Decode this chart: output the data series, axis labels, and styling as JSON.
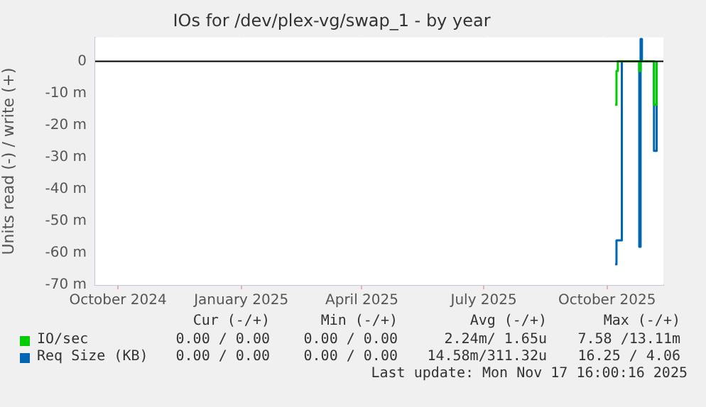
{
  "chart_data": {
    "type": "step",
    "title": "IOs for /dev/plex-vg/swap_1 - by year",
    "ylabel": "Units read (-) / write (+)",
    "xlim": [
      "2024-09-14",
      "2025-11-12"
    ],
    "xticks": [
      {
        "value": "2024-10-01",
        "label": "October 2024"
      },
      {
        "value": "2025-01-01",
        "label": "January 2025"
      },
      {
        "value": "2025-04-01",
        "label": "April 2025"
      },
      {
        "value": "2025-07-01",
        "label": "July 2025"
      },
      {
        "value": "2025-10-01",
        "label": "October 2025"
      }
    ],
    "ylim": [
      -70,
      7.5
    ],
    "yticks": [
      0,
      {
        "value": -10,
        "label": "-10 m"
      },
      {
        "value": -20,
        "label": "-20 m"
      },
      {
        "value": -30,
        "label": "-30 m"
      },
      {
        "value": -40,
        "label": "-40 m"
      },
      {
        "value": -50,
        "label": "-50 m"
      },
      {
        "value": -60,
        "label": "-60 m"
      },
      {
        "value": -70,
        "label": "-70 m"
      }
    ],
    "grid": true,
    "legend": "bottom",
    "ref_lines": [
      {
        "axis": "y",
        "value": 0,
        "color": "#000000"
      }
    ],
    "series": [
      {
        "name": "IO/sec",
        "color": "#00cc00",
        "x": [
          "2025-10-07",
          "2025-10-08",
          "2025-10-09",
          "2025-10-24",
          "2025-10-25",
          "2025-10-26",
          "2025-11-04",
          "2025-11-05",
          "2025-11-07"
        ],
        "values": [
          -13.6,
          -3,
          0,
          0,
          -3,
          0,
          0,
          -13.6,
          0
        ]
      },
      {
        "name": "Req Size (KB)",
        "color": "#0066b3",
        "x": [
          "2025-10-07",
          "2025-10-08",
          "2025-10-12",
          "2025-10-24",
          "2025-10-25",
          "2025-10-26",
          "2025-10-27",
          "2025-11-04",
          "2025-11-05",
          "2025-11-07"
        ],
        "values": [
          -63.5,
          -56,
          0,
          0,
          -58,
          7,
          0,
          0,
          -28,
          0
        ]
      }
    ],
    "annotations": [
      "Cur (-/+)",
      "Min (-/+)",
      "Avg (-/+)",
      "Max (-/+)",
      "0.00 / 0.00",
      "0.00 / 0.00",
      "2.24m/ 1.65u",
      "7.58 /13.11m",
      "0.00 / 0.00",
      "0.00 / 0.00",
      "14.58m/311.32u",
      "16.25 / 4.06",
      "Last update: Mon Nov 17 16:00:16 2025"
    ]
  }
}
